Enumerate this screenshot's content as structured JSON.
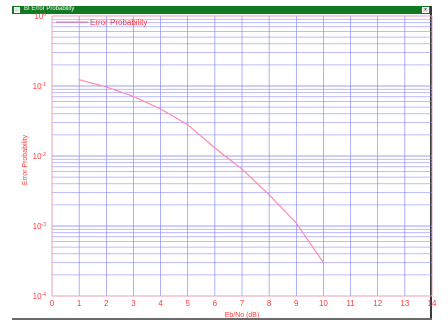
{
  "window": {
    "title": "BI Error Probability",
    "close_glyph": "×"
  },
  "colors": {
    "titlebar": "#107a22",
    "grid": "#7b7bff",
    "series": "#ff8ab0",
    "text": "#ff3b3b"
  },
  "chart_data": {
    "type": "line",
    "title": "",
    "xlabel": "Eb/No (dB)",
    "ylabel": "Error Probability",
    "x_scale": "linear",
    "y_scale": "log",
    "xlim": [
      0,
      14
    ],
    "ylim": [
      0.0001,
      1
    ],
    "grid": true,
    "legend_position": "top-left",
    "x_ticks": [
      "0",
      "1",
      "2",
      "3",
      "4",
      "5",
      "6",
      "7",
      "8",
      "9",
      "10",
      "11",
      "12",
      "13",
      "14"
    ],
    "y_ticks": [
      {
        "value": 1,
        "base": "10",
        "exp": "0"
      },
      {
        "value": 0.1,
        "base": "10",
        "exp": "-1"
      },
      {
        "value": 0.01,
        "base": "10",
        "exp": "-2"
      },
      {
        "value": 0.001,
        "base": "10",
        "exp": "-3"
      },
      {
        "value": 0.0001,
        "base": "10",
        "exp": "-4"
      }
    ],
    "series": [
      {
        "name": "Error Probability",
        "x": [
          1,
          2,
          3,
          4,
          5,
          6,
          7,
          8,
          9,
          10
        ],
        "y": [
          0.123,
          0.097,
          0.071,
          0.047,
          0.028,
          0.013,
          0.0065,
          0.0028,
          0.0011,
          0.0003
        ]
      }
    ]
  }
}
